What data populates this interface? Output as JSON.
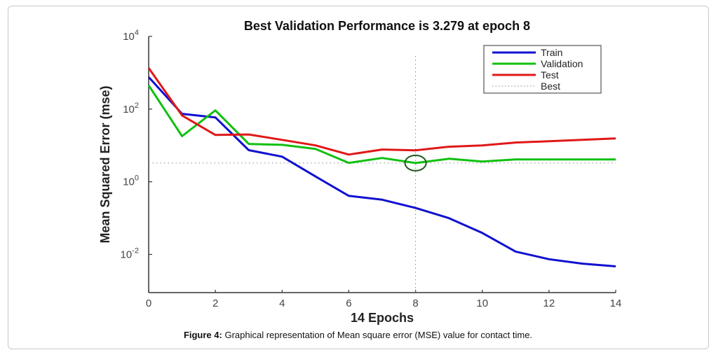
{
  "chart_data": {
    "type": "line",
    "title": "Best Validation Performance is 3.279 at epoch 8",
    "xlabel": "14 Epochs",
    "ylabel": "Mean Squared Error  (mse)",
    "yscale": "log",
    "xlim": [
      0,
      14
    ],
    "ylim_log10": [
      -3.05,
      4
    ],
    "x_ticks": [
      0,
      2,
      4,
      6,
      8,
      10,
      12,
      14
    ],
    "y_ticks": [
      {
        "exp": 4,
        "base": "10",
        "sup": "4"
      },
      {
        "exp": 2,
        "base": "10",
        "sup": "2"
      },
      {
        "exp": 0,
        "base": "10",
        "sup": "0"
      },
      {
        "exp": -2,
        "base": "10",
        "sup": "-2"
      }
    ],
    "x": [
      0,
      1,
      2,
      3,
      4,
      5,
      6,
      7,
      8,
      9,
      10,
      11,
      12,
      13,
      14
    ],
    "series": [
      {
        "name": "Train",
        "color": "#1010d0",
        "values": [
          760,
          74,
          59,
          7.4,
          4.9,
          1.4,
          0.41,
          0.32,
          0.19,
          0.1,
          0.039,
          0.012,
          0.0074,
          0.0056,
          0.0047
        ]
      },
      {
        "name": "Validation",
        "color": "#10c010",
        "values": [
          450,
          18,
          92,
          11,
          10.4,
          8.0,
          3.3,
          4.5,
          3.279,
          4.3,
          3.6,
          4.1,
          4.1,
          4.1,
          4.1
        ]
      },
      {
        "name": "Test",
        "color": "#e01818",
        "values": [
          1350,
          67,
          19.4,
          20,
          14.2,
          10,
          5.6,
          7.7,
          7.3,
          9.2,
          10,
          12,
          13,
          14.2,
          15.6
        ]
      }
    ],
    "best": {
      "name": "Best",
      "epoch": 8,
      "value": 3.279,
      "marker_color": "#1e5a1e"
    },
    "legend": {
      "position": "top-right",
      "entries": [
        "Train",
        "Validation",
        "Test",
        "Best"
      ]
    },
    "grid": false
  },
  "caption": {
    "label": "Figure 4:",
    "text": " Graphical representation of Mean square error (MSE) value for contact time."
  }
}
